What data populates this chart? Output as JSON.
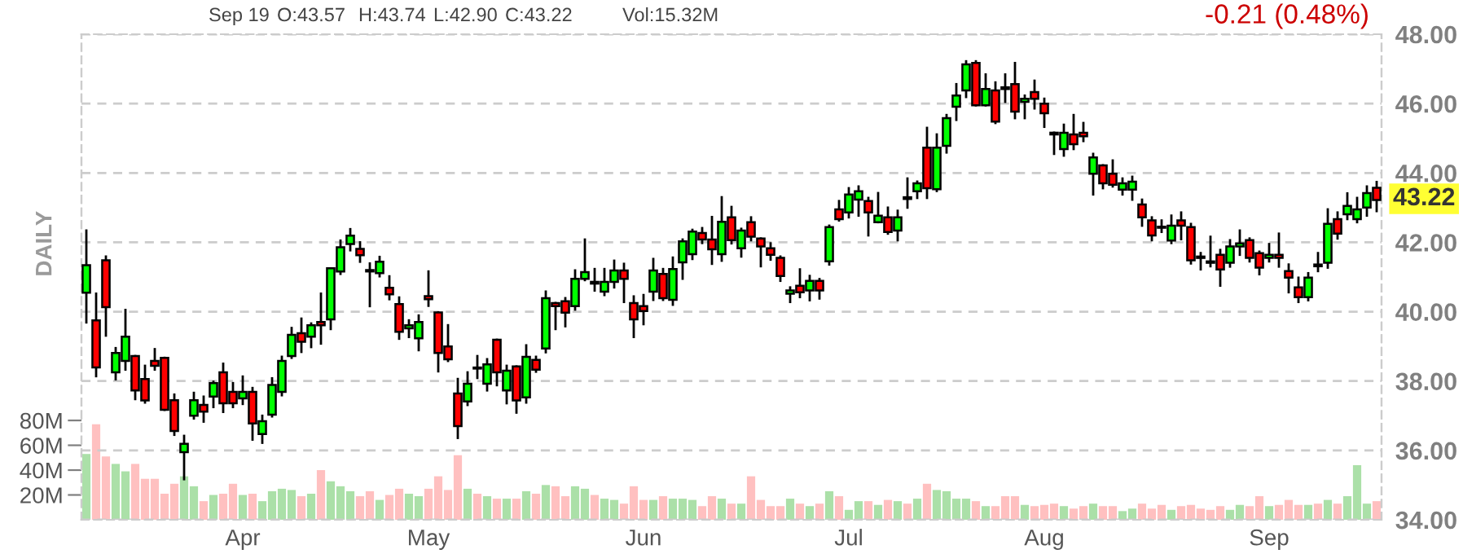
{
  "chart_data": {
    "type": "candlestick",
    "categories": [
      null,
      null,
      null,
      null,
      null,
      null,
      null,
      null,
      null,
      null,
      null,
      null,
      null,
      null,
      null,
      null,
      "Apr",
      null,
      null,
      null,
      null,
      null,
      null,
      null,
      null,
      null,
      null,
      null,
      null,
      null,
      null,
      null,
      null,
      null,
      null,
      "May",
      null,
      null,
      null,
      null,
      null,
      null,
      null,
      null,
      null,
      null,
      null,
      null,
      null,
      null,
      null,
      null,
      null,
      null,
      null,
      null,
      null,
      "Jun",
      null,
      null,
      null,
      null,
      null,
      null,
      null,
      null,
      null,
      null,
      null,
      null,
      null,
      null,
      null,
      null,
      null,
      null,
      null,
      null,
      "Jul",
      null,
      null,
      null,
      null,
      null,
      null,
      null,
      null,
      null,
      null,
      null,
      null,
      null,
      null,
      null,
      null,
      null,
      null,
      null,
      "Aug",
      null,
      null,
      null,
      null,
      null,
      null,
      null,
      null,
      null,
      null,
      null,
      null,
      null,
      null,
      null,
      null,
      null,
      null,
      null,
      null,
      null,
      null,
      "Sep",
      null,
      null,
      null,
      null,
      null,
      null,
      null,
      null,
      null,
      null,
      null
    ],
    "series": [
      {
        "colors": [
          "#00ff00",
          "#ff0000",
          "#ff0000",
          "#00ff00",
          "#00ff00",
          "#ff0000",
          "#ff0000",
          "#ff0000",
          "#ff0000",
          "#ff0000",
          "#00ff00",
          "#00ff00",
          "#ff0000",
          "#00ff00",
          "#ff0000",
          "#ff0000",
          "#00ff00",
          "#ff0000",
          "#00ff00",
          "#00ff00",
          "#00ff00",
          "#00ff00",
          "#ff0000",
          "#00ff00",
          "#ff0000",
          "#00ff00",
          "#00ff00",
          "#00ff00",
          "#ff0000",
          "#ff0000",
          "#00ff00",
          "#ff0000",
          "#ff0000",
          "#00ff00",
          "#00ff00",
          "#ff0000",
          "#ff0000",
          "#ff0000",
          "#ff0000",
          "#00ff00",
          "#ff0000",
          "#00ff00",
          "#ff0000",
          "#00ff00",
          "#ff0000",
          "#00ff00",
          "#ff0000",
          "#00ff00",
          "#ff0000",
          "#ff0000",
          "#00ff00",
          "#00ff00",
          "#ff0000",
          "#00ff00",
          "#00ff00",
          "#ff0000",
          "#ff0000",
          "#ff0000",
          "#00ff00",
          "#ff0000",
          "#00ff00",
          "#00ff00",
          "#00ff00",
          "#ff0000",
          "#ff0000",
          "#00ff00",
          "#ff0000",
          "#00ff00",
          "#ff0000",
          "#ff0000",
          "#ff0000",
          "#ff0000",
          "#00ff00",
          "#ff0000",
          "#00ff00",
          "#ff0000",
          "#00ff00",
          "#ff0000",
          "#00ff00",
          "#00ff00",
          "#ff0000",
          "#00ff00",
          "#ff0000",
          "#00ff00",
          "#ff0000",
          "#00ff00",
          "#ff0000",
          "#00ff00",
          "#00ff00",
          "#00ff00",
          "#00ff00",
          "#ff0000",
          "#00ff00",
          "#ff0000",
          "#ff0000",
          "#ff0000",
          "#00ff00",
          "#ff0000",
          "#ff0000",
          "#ff0000",
          "#00ff00",
          "#ff0000",
          "#ff0000",
          "#00ff00",
          "#ff0000",
          "#ff0000",
          "#00ff00",
          "#00ff00",
          "#ff0000",
          "#ff0000",
          "#ff0000",
          "#00ff00",
          "#ff0000",
          "#ff0000",
          "#ff0000",
          "#ff0000",
          "#ff0000",
          "#00ff00",
          "#00ff00",
          "#ff0000",
          "#ff0000",
          "#00ff00",
          "#ff0000",
          "#ff0000",
          "#ff0000",
          "#00ff00",
          "#ff0000",
          "#00ff00",
          "#ff0000",
          "#00ff00",
          "#00ff00",
          "#00ff00",
          "#ff0000"
        ],
        "ohlc": [
          [
            40.55,
            42.34,
            39.69,
            41.34
          ],
          [
            39.75,
            40.52,
            38.14,
            38.39
          ],
          [
            41.48,
            41.59,
            39.31,
            40.13
          ],
          [
            38.25,
            38.95,
            38.05,
            38.81
          ],
          [
            38.58,
            40.05,
            38.33,
            39.28
          ],
          [
            38.72,
            38.72,
            37.48,
            37.73
          ],
          [
            38.06,
            38.44,
            37.38,
            37.44
          ],
          [
            38.58,
            38.92,
            38.33,
            38.44
          ],
          [
            38.67,
            38.67,
            37.17,
            37.17
          ],
          [
            37.45,
            37.61,
            36.45,
            36.56
          ],
          [
            35.95,
            36.42,
            35.17,
            36.19
          ],
          [
            37.0,
            37.66,
            36.92,
            37.45
          ],
          [
            37.31,
            37.55,
            36.83,
            37.12
          ],
          [
            37.55,
            37.98,
            37.25,
            37.94
          ],
          [
            38.25,
            38.5,
            37.11,
            37.36
          ],
          [
            37.69,
            37.94,
            37.25,
            37.36
          ],
          [
            37.5,
            38.13,
            37.34,
            37.69
          ],
          [
            37.69,
            37.8,
            36.31,
            36.78
          ],
          [
            36.47,
            37.0,
            36.22,
            36.84
          ],
          [
            37.03,
            38.08,
            36.98,
            37.89
          ],
          [
            37.69,
            38.7,
            37.59,
            38.58
          ],
          [
            38.72,
            39.53,
            38.67,
            39.33
          ],
          [
            39.38,
            39.8,
            38.84,
            39.13
          ],
          [
            39.28,
            39.66,
            38.98,
            39.61
          ],
          [
            39.7,
            40.52,
            39.08,
            39.61
          ],
          [
            39.78,
            41.25,
            39.5,
            41.25
          ],
          [
            41.16,
            42.05,
            41.09,
            41.86
          ],
          [
            41.95,
            42.38,
            41.77,
            42.19
          ],
          [
            41.81,
            42.0,
            41.44,
            41.63
          ],
          [
            41.2,
            41.39,
            40.16,
            41.16
          ],
          [
            41.11,
            41.58,
            41.02,
            41.44
          ],
          [
            40.69,
            41.02,
            40.36,
            40.5
          ],
          [
            40.22,
            40.41,
            39.22,
            39.42
          ],
          [
            39.52,
            39.75,
            39.27,
            39.61
          ],
          [
            39.23,
            39.89,
            38.89,
            39.7
          ],
          [
            40.45,
            41.16,
            40.17,
            40.36
          ],
          [
            39.98,
            39.98,
            38.28,
            38.81
          ],
          [
            39.0,
            39.61,
            38.58,
            38.63
          ],
          [
            37.64,
            38.06,
            36.36,
            36.7
          ],
          [
            37.41,
            38.25,
            37.31,
            37.92
          ],
          [
            38.39,
            38.72,
            38.09,
            38.36
          ],
          [
            37.92,
            38.63,
            37.73,
            38.48
          ],
          [
            39.19,
            39.19,
            37.88,
            38.25
          ],
          [
            37.73,
            38.44,
            37.36,
            38.3
          ],
          [
            38.42,
            38.42,
            37.09,
            37.44
          ],
          [
            37.53,
            39.03,
            37.38,
            38.7
          ],
          [
            38.61,
            38.7,
            38.27,
            38.33
          ],
          [
            38.94,
            40.58,
            38.83,
            40.39
          ],
          [
            40.25,
            40.25,
            39.5,
            40.16
          ],
          [
            40.3,
            40.39,
            39.58,
            39.97
          ],
          [
            40.16,
            41.19,
            40.06,
            40.95
          ],
          [
            40.95,
            42.08,
            40.91,
            41.14
          ],
          [
            40.86,
            41.23,
            40.61,
            40.81
          ],
          [
            40.58,
            41.23,
            40.48,
            40.86
          ],
          [
            40.86,
            41.47,
            40.7,
            41.19
          ],
          [
            41.19,
            41.38,
            40.28,
            40.95
          ],
          [
            40.25,
            40.44,
            39.27,
            39.78
          ],
          [
            40.16,
            40.48,
            39.64,
            40.02
          ],
          [
            40.58,
            41.52,
            40.34,
            41.19
          ],
          [
            41.09,
            41.23,
            40.34,
            40.39
          ],
          [
            40.34,
            41.56,
            40.2,
            41.23
          ],
          [
            41.42,
            42.08,
            40.95,
            42.03
          ],
          [
            41.66,
            42.36,
            41.52,
            42.31
          ],
          [
            42.27,
            42.41,
            41.98,
            42.08
          ],
          [
            42.08,
            42.73,
            41.38,
            41.8
          ],
          [
            41.66,
            43.3,
            41.47,
            42.59
          ],
          [
            42.72,
            43.02,
            41.97,
            42.06
          ],
          [
            41.83,
            42.39,
            41.59,
            42.34
          ],
          [
            42.58,
            42.72,
            42.06,
            42.16
          ],
          [
            42.11,
            42.11,
            41.31,
            41.88
          ],
          [
            41.83,
            41.97,
            41.5,
            41.64
          ],
          [
            41.55,
            41.59,
            40.89,
            41.03
          ],
          [
            40.52,
            40.7,
            40.28,
            40.61
          ],
          [
            40.75,
            41.22,
            40.42,
            40.56
          ],
          [
            40.61,
            41.03,
            40.33,
            40.89
          ],
          [
            40.89,
            40.94,
            40.38,
            40.61
          ],
          [
            41.45,
            42.48,
            41.36,
            42.44
          ],
          [
            42.95,
            43.19,
            42.63,
            42.67
          ],
          [
            42.86,
            43.56,
            42.72,
            43.38
          ],
          [
            43.23,
            43.61,
            42.77,
            43.47
          ],
          [
            43.19,
            43.28,
            42.2,
            42.86
          ],
          [
            42.58,
            43.42,
            42.58,
            42.77
          ],
          [
            42.72,
            43.0,
            42.25,
            42.3
          ],
          [
            42.34,
            42.91,
            42.06,
            42.72
          ],
          [
            43.3,
            43.84,
            43.0,
            43.25
          ],
          [
            43.47,
            43.75,
            43.28,
            43.7
          ],
          [
            44.73,
            45.3,
            43.28,
            43.56
          ],
          [
            43.53,
            45.11,
            43.48,
            44.73
          ],
          [
            44.78,
            45.67,
            44.59,
            45.58
          ],
          [
            45.91,
            46.56,
            45.53,
            46.23
          ],
          [
            46.38,
            47.22,
            46.19,
            47.13
          ],
          [
            47.17,
            47.22,
            45.95,
            45.95
          ],
          [
            45.95,
            46.84,
            45.95,
            46.42
          ],
          [
            46.38,
            46.61,
            45.44,
            45.48
          ],
          [
            46.47,
            46.84,
            46.05,
            46.42
          ],
          [
            46.56,
            47.17,
            45.58,
            45.77
          ],
          [
            46.05,
            46.23,
            45.58,
            46.14
          ],
          [
            46.33,
            46.66,
            45.86,
            46.14
          ],
          [
            46.0,
            46.14,
            45.33,
            45.72
          ],
          [
            45.16,
            45.16,
            44.55,
            45.11
          ],
          [
            44.69,
            45.39,
            44.5,
            45.16
          ],
          [
            45.11,
            45.67,
            44.69,
            44.83
          ],
          [
            45.16,
            45.44,
            44.92,
            45.06
          ],
          [
            43.98,
            44.55,
            43.38,
            44.45
          ],
          [
            44.22,
            44.22,
            43.56,
            43.7
          ],
          [
            43.98,
            44.36,
            43.61,
            43.66
          ],
          [
            43.52,
            43.84,
            43.38,
            43.7
          ],
          [
            43.52,
            43.89,
            43.23,
            43.75
          ],
          [
            43.09,
            43.23,
            42.48,
            42.72
          ],
          [
            42.63,
            42.72,
            42.06,
            42.2
          ],
          [
            42.45,
            42.63,
            42.3,
            42.42
          ],
          [
            42.05,
            42.77,
            41.98,
            42.48
          ],
          [
            42.63,
            42.86,
            42.09,
            42.48
          ],
          [
            42.44,
            42.53,
            41.39,
            41.48
          ],
          [
            41.59,
            41.69,
            41.22,
            41.55
          ],
          [
            41.45,
            42.16,
            41.31,
            41.41
          ],
          [
            41.64,
            41.78,
            40.75,
            41.22
          ],
          [
            41.41,
            42.06,
            41.3,
            41.88
          ],
          [
            41.88,
            42.34,
            41.64,
            41.97
          ],
          [
            42.06,
            42.11,
            41.45,
            41.55
          ],
          [
            41.69,
            41.73,
            41.08,
            41.27
          ],
          [
            41.55,
            41.95,
            41.45,
            41.64
          ],
          [
            41.64,
            42.25,
            41.3,
            41.55
          ],
          [
            41.17,
            41.36,
            40.56,
            40.98
          ],
          [
            40.7,
            40.98,
            40.28,
            40.42
          ],
          [
            40.42,
            41.11,
            40.33,
            40.98
          ],
          [
            41.36,
            41.69,
            41.17,
            41.31
          ],
          [
            41.41,
            42.95,
            41.27,
            42.53
          ],
          [
            42.67,
            42.86,
            42.11,
            42.25
          ],
          [
            42.81,
            43.41,
            42.67,
            43.05
          ],
          [
            42.67,
            43.28,
            42.58,
            42.95
          ],
          [
            43.0,
            43.61,
            42.77,
            43.42
          ],
          [
            43.57,
            43.74,
            42.9,
            43.22
          ]
        ]
      },
      {
        "type": "bar",
        "axis": "y2",
        "colors": [
          "#abe0a8",
          "#ffc0c0",
          "#ffc0c0",
          "#abe0a8",
          "#abe0a8",
          "#ffc0c0",
          "#ffc0c0",
          "#ffc0c0",
          "#ffc0c0",
          "#ffc0c0",
          "#abe0a8",
          "#abe0a8",
          "#ffc0c0",
          "#abe0a8",
          "#ffc0c0",
          "#ffc0c0",
          "#abe0a8",
          "#ffc0c0",
          "#abe0a8",
          "#abe0a8",
          "#abe0a8",
          "#abe0a8",
          "#ffc0c0",
          "#abe0a8",
          "#ffc0c0",
          "#abe0a8",
          "#abe0a8",
          "#abe0a8",
          "#ffc0c0",
          "#ffc0c0",
          "#abe0a8",
          "#ffc0c0",
          "#ffc0c0",
          "#abe0a8",
          "#abe0a8",
          "#ffc0c0",
          "#ffc0c0",
          "#ffc0c0",
          "#ffc0c0",
          "#abe0a8",
          "#ffc0c0",
          "#abe0a8",
          "#ffc0c0",
          "#abe0a8",
          "#ffc0c0",
          "#abe0a8",
          "#ffc0c0",
          "#abe0a8",
          "#ffc0c0",
          "#ffc0c0",
          "#abe0a8",
          "#abe0a8",
          "#ffc0c0",
          "#abe0a8",
          "#abe0a8",
          "#ffc0c0",
          "#ffc0c0",
          "#ffc0c0",
          "#abe0a8",
          "#ffc0c0",
          "#abe0a8",
          "#abe0a8",
          "#abe0a8",
          "#ffc0c0",
          "#ffc0c0",
          "#abe0a8",
          "#ffc0c0",
          "#abe0a8",
          "#ffc0c0",
          "#ffc0c0",
          "#ffc0c0",
          "#ffc0c0",
          "#abe0a8",
          "#ffc0c0",
          "#abe0a8",
          "#ffc0c0",
          "#abe0a8",
          "#ffc0c0",
          "#abe0a8",
          "#abe0a8",
          "#ffc0c0",
          "#abe0a8",
          "#ffc0c0",
          "#abe0a8",
          "#ffc0c0",
          "#abe0a8",
          "#ffc0c0",
          "#abe0a8",
          "#abe0a8",
          "#abe0a8",
          "#abe0a8",
          "#ffc0c0",
          "#abe0a8",
          "#ffc0c0",
          "#ffc0c0",
          "#ffc0c0",
          "#abe0a8",
          "#ffc0c0",
          "#ffc0c0",
          "#ffc0c0",
          "#abe0a8",
          "#ffc0c0",
          "#ffc0c0",
          "#abe0a8",
          "#ffc0c0",
          "#ffc0c0",
          "#abe0a8",
          "#abe0a8",
          "#ffc0c0",
          "#ffc0c0",
          "#ffc0c0",
          "#abe0a8",
          "#ffc0c0",
          "#ffc0c0",
          "#ffc0c0",
          "#ffc0c0",
          "#ffc0c0",
          "#abe0a8",
          "#abe0a8",
          "#ffc0c0",
          "#ffc0c0",
          "#abe0a8",
          "#ffc0c0",
          "#ffc0c0",
          "#ffc0c0",
          "#abe0a8",
          "#ffc0c0",
          "#abe0a8",
          "#ffc0c0",
          "#abe0a8",
          "#abe0a8",
          "#abe0a8",
          "#ffc0c0"
        ],
        "values": [
          53,
          77,
          51,
          45,
          39,
          45,
          33,
          33,
          21,
          29,
          35,
          27,
          15,
          20,
          21,
          29,
          20,
          21,
          15,
          23,
          25,
          24,
          19,
          21,
          40,
          31,
          27,
          23,
          19,
          23,
          16,
          20,
          25,
          21,
          19,
          25,
          35,
          24,
          52,
          25,
          21,
          19,
          17,
          17,
          17,
          23,
          21,
          28,
          27,
          19,
          27,
          25,
          20,
          17,
          16,
          13,
          27,
          16,
          16,
          19,
          17,
          17,
          16,
          11,
          19,
          17,
          13,
          13,
          35,
          16,
          11,
          11,
          17,
          13,
          11,
          13,
          23,
          19,
          8,
          15,
          15,
          12,
          16,
          15,
          13,
          17,
          29,
          24,
          23,
          17,
          17,
          15,
          11,
          11,
          19,
          19,
          12,
          11,
          12,
          13,
          11,
          9,
          11,
          13,
          11,
          11,
          7,
          9,
          13,
          9,
          12,
          8,
          11,
          12,
          9,
          8,
          11,
          8,
          12,
          11,
          19,
          11,
          12,
          16,
          12,
          12,
          13,
          16,
          13,
          19,
          44,
          13,
          15
        ]
      }
    ],
    "ylim": [
      34,
      48
    ],
    "yticks": [
      {
        "value": 34,
        "label": "34.00"
      },
      {
        "value": 36,
        "label": "36.00"
      },
      {
        "value": 38,
        "label": "38.00"
      },
      {
        "value": 40,
        "label": "40.00"
      },
      {
        "value": 42,
        "label": "42.00"
      },
      {
        "value": 44,
        "label": "44.00"
      },
      {
        "value": 46,
        "label": "46.00"
      },
      {
        "value": 48,
        "label": "48.00"
      }
    ],
    "y2lim": [
      0,
      391
    ],
    "y2ticks": [
      {
        "value": 20,
        "label": "20M"
      },
      {
        "value": 40,
        "label": "40M"
      },
      {
        "value": 60,
        "label": "60M"
      },
      {
        "value": 80,
        "label": "80M"
      }
    ],
    "grid": true,
    "annotations": [
      "Sep 19",
      "O:43.57",
      "H:43.74",
      "L:42.90",
      "C:43.22",
      "Vol:15.32M",
      "-0.21 (0.48%)",
      "43.22",
      "DAILY"
    ]
  }
}
